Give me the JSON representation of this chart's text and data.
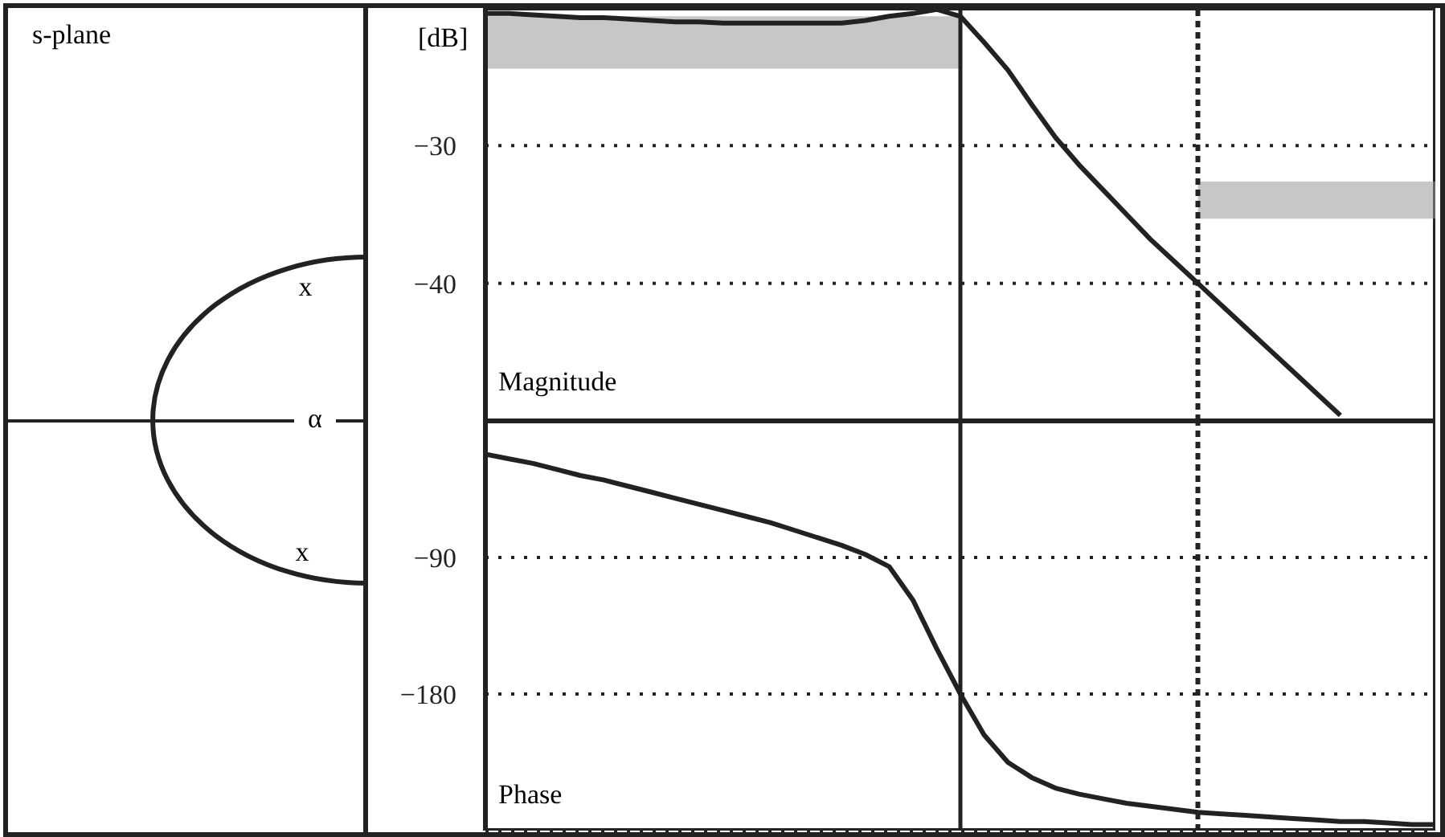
{
  "chart_data": [
    {
      "type": "other",
      "title": "s-plane",
      "annotations": [
        "x",
        "α",
        "x"
      ]
    },
    {
      "type": "line",
      "title": "Magnitude",
      "ylabel": "[dB]",
      "categories": [
        null,
        null,
        null,
        null,
        null,
        null,
        null,
        null,
        null,
        null,
        null,
        null,
        null,
        null,
        null,
        null,
        null,
        null,
        null,
        null,
        null,
        null,
        null,
        null,
        null,
        null,
        null,
        null,
        null,
        null,
        null,
        null,
        null,
        null,
        null,
        null,
        null,
        null,
        null,
        null,
        null
      ],
      "ylim": [
        -50,
        -20
      ],
      "yticks": [
        {
          "value": -30,
          "label": "−30"
        },
        {
          "value": -40,
          "label": "−40"
        }
      ],
      "tick_labels": "y",
      "grid": "y",
      "marker": "none",
      "line_style": "solid",
      "series": [
        {
          "type": "line",
          "color": "#222222",
          "values": [
            -20.4,
            -20.4,
            -20.5,
            -20.6,
            -20.7,
            -20.7,
            -20.8,
            -20.9,
            -21,
            -21,
            -21.1,
            -21.1,
            -21.1,
            -21.1,
            -21.1,
            -21.1,
            -20.9,
            -20.6,
            -20.4,
            -20.1,
            -20.6,
            -22.5,
            -24.5,
            -27,
            -29.4,
            -31.4,
            -33.2,
            -35,
            -36.8,
            -38.4,
            -40,
            -41.6,
            -43.2,
            -44.8,
            -46.4,
            -48,
            -49.6,
            null,
            null,
            null,
            null
          ]
        }
      ],
      "bands": [
        {
          "axis": "y",
          "from": -24.4,
          "to": -20.6,
          "color": "#999999"
        },
        {
          "axis": "y",
          "from": -35.3,
          "to": -32.6,
          "color": "#999999"
        }
      ]
    },
    {
      "type": "line",
      "title": "Phase",
      "categories": [
        null,
        null,
        null,
        null,
        null,
        null,
        null,
        null,
        null,
        null,
        null,
        null,
        null,
        null,
        null,
        null,
        null,
        null,
        null,
        null,
        null,
        null,
        null,
        null,
        null,
        null,
        null,
        null,
        null,
        null,
        null,
        null,
        null,
        null,
        null,
        null,
        null,
        null,
        null,
        null,
        null
      ],
      "ylim": [
        -270,
        0
      ],
      "yticks": [
        {
          "value": -90,
          "label": "−90"
        },
        {
          "value": -180,
          "label": "−180"
        }
      ],
      "tick_labels": "y",
      "grid": "y",
      "marker": "none",
      "line_style": "solid",
      "series": [
        {
          "type": "line",
          "color": "#222222",
          "values": [
            -22,
            -25,
            -28,
            -32,
            -36,
            -39,
            -43,
            -47,
            -51,
            -55,
            -59,
            -63,
            -67,
            -72,
            -77,
            -82,
            -88,
            -96,
            -118,
            -150,
            -180,
            -207,
            -225,
            -235,
            -242,
            -246,
            -249,
            -252,
            -254,
            -256,
            -258,
            -259,
            -260,
            -261,
            -262,
            -263,
            -264,
            -264,
            -265,
            -266,
            -266
          ]
        }
      ]
    }
  ]
}
